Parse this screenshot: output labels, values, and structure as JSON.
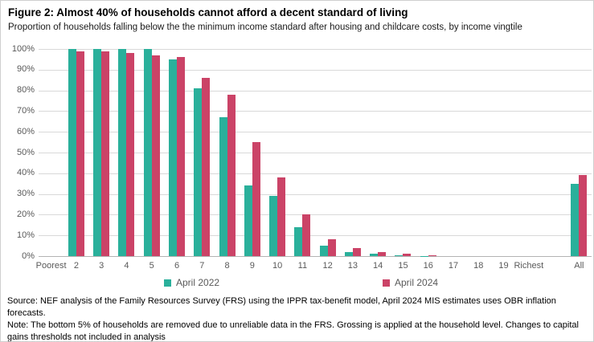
{
  "figure": {
    "title": "Figure 2: Almost 40% of households cannot afford a decent standard of living",
    "subtitle": "Proportion of households falling below the the minimum income standard after housing and childcare costs, by income vingtile",
    "source": "Source: NEF analysis of the Family Resources Survey (FRS) using the IPPR tax-benefit model, April 2024 MIS estimates uses OBR inflation forecasts.",
    "note": "Note: The bottom 5% of households are removed due to unreliable data in the FRS. Grossing is applied at the household level. Changes to capital gains thresholds not included in analysis"
  },
  "chart_data": {
    "type": "bar",
    "categories": [
      "Poorest",
      "2",
      "3",
      "4",
      "5",
      "6",
      "7",
      "8",
      "9",
      "10",
      "11",
      "12",
      "13",
      "14",
      "15",
      "16",
      "17",
      "18",
      "19",
      "Richest",
      "All"
    ],
    "series": [
      {
        "name": "April 2022",
        "color": "#2ab09b",
        "values": [
          0,
          100,
          100,
          100,
          100,
          95,
          81,
          67,
          34,
          29,
          14,
          5,
          2,
          1,
          0.5,
          0.2,
          0,
          0,
          0,
          0,
          35
        ]
      },
      {
        "name": "April 2024",
        "color": "#cb4367",
        "values": [
          0,
          99,
          99,
          98,
          97,
          96,
          86,
          78,
          55,
          38,
          20,
          8,
          4,
          2,
          1,
          0.5,
          0,
          0,
          0,
          0,
          39
        ]
      }
    ],
    "title": "",
    "xlabel": "",
    "ylabel": "",
    "ylim": [
      0,
      100
    ],
    "ytick_labels": [
      "0%",
      "10%",
      "20%",
      "30%",
      "40%",
      "50%",
      "60%",
      "70%",
      "80%",
      "90%",
      "100%"
    ],
    "grid": true,
    "legend_position": "bottom",
    "gap_before_category": "All",
    "colors": {
      "grid": "#d9d9d9",
      "axis": "#b3b3b3",
      "tick_text": "#595959"
    }
  }
}
